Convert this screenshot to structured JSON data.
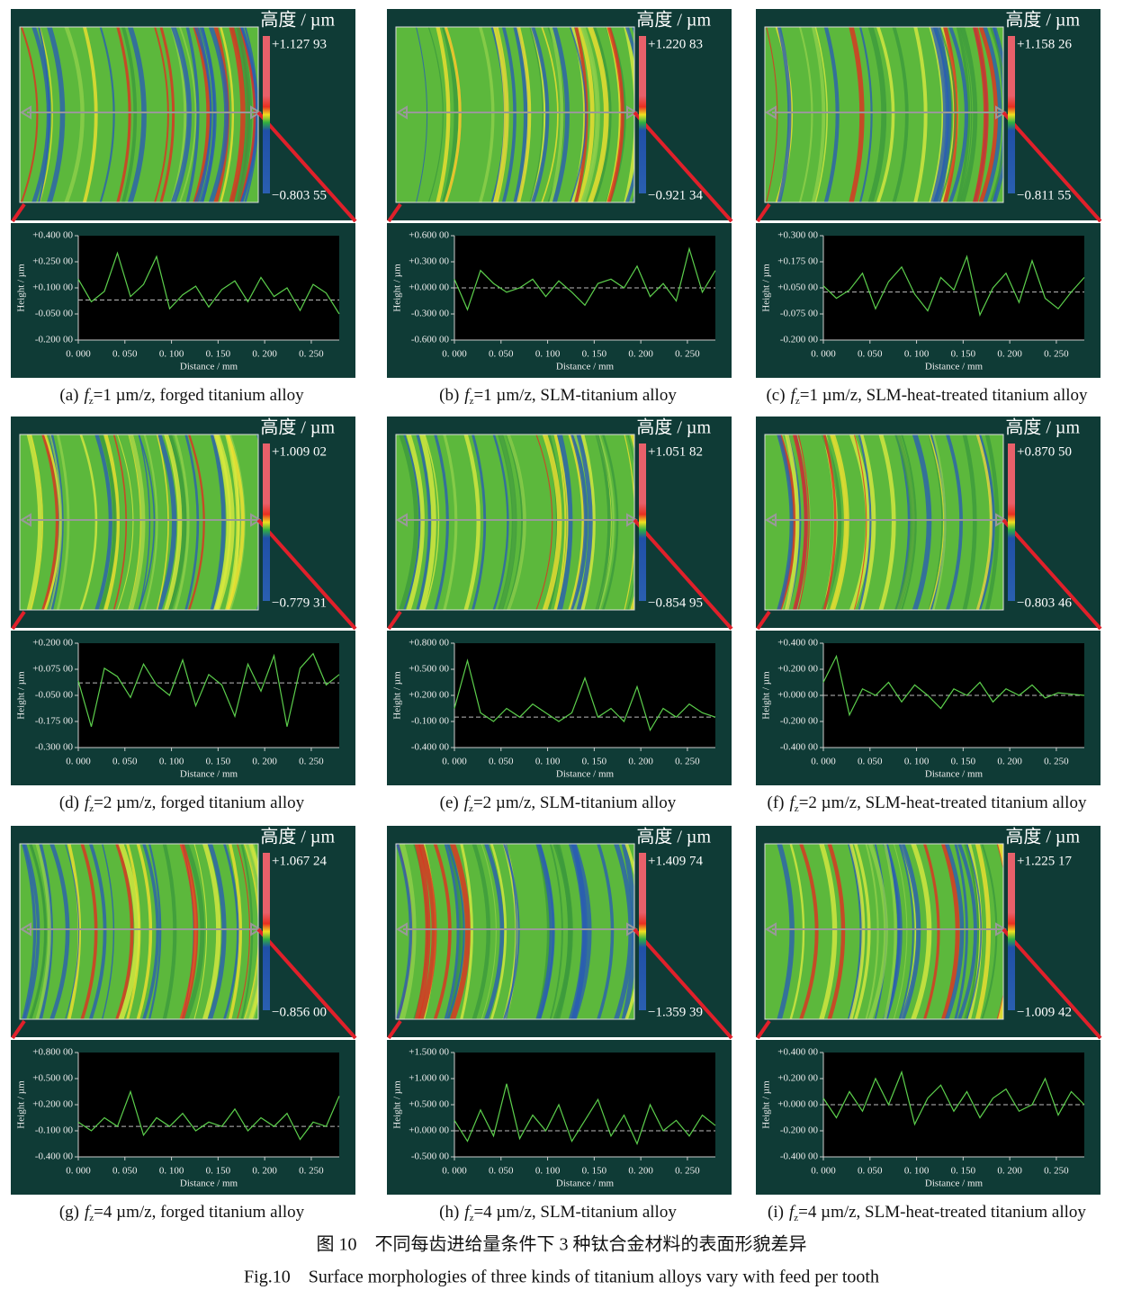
{
  "figure_title_zh": "图 10　不同每齿进给量条件下 3 种钛合金材料的表面形貌差异",
  "figure_title_en": "Fig.10　Surface morphologies of three kinds of titanium alloys vary with feed per tooth",
  "chart_data": [
    {
      "type": "line",
      "caption": {
        "label": "(a)",
        "var": "f",
        "sub": "z",
        "text": "=1 µm/z, forged titanium alloy"
      },
      "colorbar": {
        "title": "高度 / µm",
        "max": {
          "value": 1.12793,
          "label": "+1.127 93"
        },
        "min": {
          "value": -0.80355,
          "label": "−0.803 55"
        }
      },
      "xlabel": "Distance / mm",
      "ylabel": "Height / µm",
      "color": "#5ccf4c",
      "x": [
        0,
        0.014,
        0.028,
        0.042,
        0.056,
        0.07,
        0.084,
        0.098,
        0.112,
        0.126,
        0.14,
        0.154,
        0.168,
        0.182,
        0.196,
        0.21,
        0.224,
        0.238,
        0.252,
        0.266,
        0.28
      ],
      "values": [
        0.15,
        0.02,
        0.08,
        0.3,
        0.05,
        0.12,
        0.28,
        -0.02,
        0.06,
        0.11,
        -0.01,
        0.09,
        0.14,
        0.02,
        0.16,
        0.05,
        0.1,
        -0.03,
        0.12,
        0.07,
        -0.05
      ],
      "reference_line": 0.03,
      "xlim": [
        0,
        0.28
      ],
      "ylim": [
        -0.2,
        0.4
      ],
      "xticks": [
        {
          "value": 0,
          "label": "0. 000"
        },
        {
          "value": 0.05,
          "label": "0. 050"
        },
        {
          "value": 0.1,
          "label": "0. 100"
        },
        {
          "value": 0.15,
          "label": "0. 150"
        },
        {
          "value": 0.2,
          "label": "0. 200"
        },
        {
          "value": 0.25,
          "label": "0. 250"
        }
      ],
      "yticks": [
        {
          "value": -0.2,
          "label": "-0.200 00"
        },
        {
          "value": -0.05,
          "label": "-0.050 00"
        },
        {
          "value": 0.1,
          "label": "+0.100 00"
        },
        {
          "value": 0.25,
          "label": "+0.250 00"
        },
        {
          "value": 0.4,
          "label": "+0.400 00"
        }
      ]
    },
    {
      "type": "line",
      "caption": {
        "label": "(b)",
        "var": "f",
        "sub": "z",
        "text": "=1 µm/z, SLM-titanium alloy"
      },
      "colorbar": {
        "title": "高度 / µm",
        "max": {
          "value": 1.22083,
          "label": "+1.220 83"
        },
        "min": {
          "value": -0.92134,
          "label": "−0.921 34"
        }
      },
      "xlabel": "Distance / mm",
      "ylabel": "Height / µm",
      "color": "#5ccf4c",
      "x": [
        0,
        0.014,
        0.028,
        0.042,
        0.056,
        0.07,
        0.084,
        0.098,
        0.112,
        0.126,
        0.14,
        0.154,
        0.168,
        0.182,
        0.196,
        0.21,
        0.224,
        0.238,
        0.252,
        0.266,
        0.28
      ],
      "values": [
        0.1,
        -0.25,
        0.2,
        0.05,
        -0.05,
        0,
        0.1,
        -0.1,
        0.08,
        -0.05,
        -0.2,
        0.05,
        0.1,
        0,
        0.25,
        -0.1,
        0.05,
        -0.15,
        0.45,
        -0.05,
        0.2
      ],
      "reference_line": 0,
      "xlim": [
        0,
        0.28
      ],
      "ylim": [
        -0.6,
        0.6
      ],
      "xticks": [
        {
          "value": 0,
          "label": "0. 000"
        },
        {
          "value": 0.05,
          "label": "0. 050"
        },
        {
          "value": 0.1,
          "label": "0. 100"
        },
        {
          "value": 0.15,
          "label": "0. 150"
        },
        {
          "value": 0.2,
          "label": "0. 200"
        },
        {
          "value": 0.25,
          "label": "0. 250"
        }
      ],
      "yticks": [
        {
          "value": -0.6,
          "label": "-0.600 00"
        },
        {
          "value": -0.3,
          "label": "-0.300 00"
        },
        {
          "value": 0,
          "label": "+0.000 00"
        },
        {
          "value": 0.3,
          "label": "+0.300 00"
        },
        {
          "value": 0.6,
          "label": "+0.600 00"
        }
      ]
    },
    {
      "type": "line",
      "caption": {
        "label": "(c)",
        "var": "f",
        "sub": "z",
        "text": "=1 µm/z, SLM-heat-treated titanium alloy"
      },
      "colorbar": {
        "title": "高度 / µm",
        "max": {
          "value": 1.15826,
          "label": "+1.158 26"
        },
        "min": {
          "value": -0.81155,
          "label": "−0.811 55"
        }
      },
      "xlabel": "Distance / mm",
      "ylabel": "Height / µm",
      "color": "#5ccf4c",
      "x": [
        0,
        0.014,
        0.028,
        0.042,
        0.056,
        0.07,
        0.084,
        0.098,
        0.112,
        0.126,
        0.14,
        0.154,
        0.168,
        0.182,
        0.196,
        0.21,
        0.224,
        0.238,
        0.252,
        0.266,
        0.28
      ],
      "values": [
        0.06,
        0,
        0.04,
        0.12,
        -0.05,
        0.08,
        0.15,
        0.02,
        -0.06,
        0.1,
        0.04,
        0.2,
        -0.08,
        0.05,
        0.12,
        -0.02,
        0.18,
        0,
        -0.05,
        0.03,
        0.1
      ],
      "reference_line": 0.03,
      "xlim": [
        0,
        0.28
      ],
      "ylim": [
        -0.2,
        0.3
      ],
      "xticks": [
        {
          "value": 0,
          "label": "0. 000"
        },
        {
          "value": 0.05,
          "label": "0. 050"
        },
        {
          "value": 0.1,
          "label": "0. 100"
        },
        {
          "value": 0.15,
          "label": "0. 150"
        },
        {
          "value": 0.2,
          "label": "0. 200"
        },
        {
          "value": 0.25,
          "label": "0. 250"
        }
      ],
      "yticks": [
        {
          "value": -0.2,
          "label": "-0.200 00"
        },
        {
          "value": -0.075,
          "label": "-0.075 00"
        },
        {
          "value": 0.05,
          "label": "+0.050 00"
        },
        {
          "value": 0.175,
          "label": "+0.175 00"
        },
        {
          "value": 0.3,
          "label": "+0.300 00"
        }
      ]
    },
    {
      "type": "line",
      "caption": {
        "label": "(d)",
        "var": "f",
        "sub": "z",
        "text": "=2 µm/z, forged titanium alloy"
      },
      "colorbar": {
        "title": "高度 / µm",
        "max": {
          "value": 1.00902,
          "label": "+1.009 02"
        },
        "min": {
          "value": -0.77931,
          "label": "−0.779 31"
        }
      },
      "xlabel": "Distance / mm",
      "ylabel": "Height / µm",
      "color": "#5ccf4c",
      "x": [
        0,
        0.014,
        0.028,
        0.042,
        0.056,
        0.07,
        0.084,
        0.098,
        0.112,
        0.126,
        0.14,
        0.154,
        0.168,
        0.182,
        0.196,
        0.21,
        0.224,
        0.238,
        0.252,
        0.266,
        0.28
      ],
      "values": [
        0.02,
        -0.2,
        0.08,
        0.04,
        -0.06,
        0.1,
        0,
        -0.05,
        0.12,
        -0.1,
        0.05,
        0,
        -0.15,
        0.1,
        -0.03,
        0.14,
        -0.2,
        0.08,
        0.15,
        0,
        0.05
      ],
      "reference_line": 0.01,
      "xlim": [
        0,
        0.28
      ],
      "ylim": [
        -0.3,
        0.2
      ],
      "xticks": [
        {
          "value": 0,
          "label": "0. 000"
        },
        {
          "value": 0.05,
          "label": "0. 050"
        },
        {
          "value": 0.1,
          "label": "0. 100"
        },
        {
          "value": 0.15,
          "label": "0. 150"
        },
        {
          "value": 0.2,
          "label": "0. 200"
        },
        {
          "value": 0.25,
          "label": "0. 250"
        }
      ],
      "yticks": [
        {
          "value": -0.3,
          "label": "-0.300 00"
        },
        {
          "value": -0.175,
          "label": "-0.175 00"
        },
        {
          "value": -0.05,
          "label": "-0.050 00"
        },
        {
          "value": 0.075,
          "label": "+0.075 00"
        },
        {
          "value": 0.2,
          "label": "+0.200 00"
        }
      ]
    },
    {
      "type": "line",
      "caption": {
        "label": "(e)",
        "var": "f",
        "sub": "z",
        "text": "=2 µm/z, SLM-titanium alloy"
      },
      "colorbar": {
        "title": "高度 / µm",
        "max": {
          "value": 1.05182,
          "label": "+1.051 82"
        },
        "min": {
          "value": -0.85495,
          "label": "−0.854 95"
        }
      },
      "xlabel": "Distance / mm",
      "ylabel": "Height / µm",
      "color": "#5ccf4c",
      "x": [
        0,
        0.014,
        0.028,
        0.042,
        0.056,
        0.07,
        0.084,
        0.098,
        0.112,
        0.126,
        0.14,
        0.154,
        0.168,
        0.182,
        0.196,
        0.21,
        0.224,
        0.238,
        0.252,
        0.266,
        0.28
      ],
      "values": [
        0.05,
        0.6,
        0,
        -0.1,
        0.05,
        -0.05,
        0.1,
        0,
        -0.1,
        0,
        0.4,
        -0.05,
        0.05,
        -0.1,
        0.3,
        -0.2,
        0.05,
        -0.05,
        0.1,
        0,
        -0.05
      ],
      "reference_line": -0.05,
      "xlim": [
        0,
        0.28
      ],
      "ylim": [
        -0.4,
        0.8
      ],
      "xticks": [
        {
          "value": 0,
          "label": "0. 000"
        },
        {
          "value": 0.05,
          "label": "0. 050"
        },
        {
          "value": 0.1,
          "label": "0. 100"
        },
        {
          "value": 0.15,
          "label": "0. 150"
        },
        {
          "value": 0.2,
          "label": "0. 200"
        },
        {
          "value": 0.25,
          "label": "0. 250"
        }
      ],
      "yticks": [
        {
          "value": -0.4,
          "label": "-0.400 00"
        },
        {
          "value": -0.1,
          "label": "-0.100 00"
        },
        {
          "value": 0.2,
          "label": "+0.200 00"
        },
        {
          "value": 0.5,
          "label": "+0.500 00"
        },
        {
          "value": 0.8,
          "label": "+0.800 00"
        }
      ]
    },
    {
      "type": "line",
      "caption": {
        "label": "(f)",
        "var": "f",
        "sub": "z",
        "text": "=2 µm/z, SLM-heat-treated titanium alloy"
      },
      "colorbar": {
        "title": "高度 / µm",
        "max": {
          "value": 0.8705,
          "label": "+0.870 50"
        },
        "min": {
          "value": -0.80346,
          "label": "−0.803 46"
        }
      },
      "xlabel": "Distance / mm",
      "ylabel": "Height / µm",
      "color": "#5ccf4c",
      "x": [
        0,
        0.014,
        0.028,
        0.042,
        0.056,
        0.07,
        0.084,
        0.098,
        0.112,
        0.126,
        0.14,
        0.154,
        0.168,
        0.182,
        0.196,
        0.21,
        0.224,
        0.238,
        0.252,
        0.266,
        0.28
      ],
      "values": [
        0.1,
        0.3,
        -0.15,
        0.05,
        0,
        0.1,
        -0.05,
        0.08,
        0,
        -0.1,
        0.05,
        0,
        0.1,
        -0.05,
        0.05,
        0,
        0.08,
        -0.02,
        0.02,
        0.01,
        0
      ],
      "reference_line": 0,
      "xlim": [
        0,
        0.28
      ],
      "ylim": [
        -0.4,
        0.4
      ],
      "xticks": [
        {
          "value": 0,
          "label": "0. 000"
        },
        {
          "value": 0.05,
          "label": "0. 050"
        },
        {
          "value": 0.1,
          "label": "0. 100"
        },
        {
          "value": 0.15,
          "label": "0. 150"
        },
        {
          "value": 0.2,
          "label": "0. 200"
        },
        {
          "value": 0.25,
          "label": "0. 250"
        }
      ],
      "yticks": [
        {
          "value": -0.4,
          "label": "-0.400 00"
        },
        {
          "value": -0.2,
          "label": "-0.200 00"
        },
        {
          "value": 0,
          "label": "+0.000 00"
        },
        {
          "value": 0.2,
          "label": "+0.200 00"
        },
        {
          "value": 0.4,
          "label": "+0.400 00"
        }
      ]
    },
    {
      "type": "line",
      "caption": {
        "label": "(g)",
        "var": "f",
        "sub": "z",
        "text": "=4 µm/z, forged titanium alloy"
      },
      "colorbar": {
        "title": "高度 / µm",
        "max": {
          "value": 1.06724,
          "label": "+1.067 24"
        },
        "min": {
          "value": -0.856,
          "label": "−0.856 00"
        }
      },
      "xlabel": "Distance / mm",
      "ylabel": "Height / µm",
      "color": "#5ccf4c",
      "x": [
        0,
        0.014,
        0.028,
        0.042,
        0.056,
        0.07,
        0.084,
        0.098,
        0.112,
        0.126,
        0.14,
        0.154,
        0.168,
        0.182,
        0.196,
        0.21,
        0.224,
        0.238,
        0.252,
        0.266,
        0.28
      ],
      "values": [
        0,
        -0.1,
        0.05,
        -0.05,
        0.35,
        -0.15,
        0.05,
        -0.05,
        0.1,
        -0.1,
        0,
        -0.05,
        0.15,
        -0.1,
        0.05,
        -0.05,
        0.1,
        -0.2,
        0,
        -0.05,
        0.3
      ],
      "reference_line": -0.05,
      "xlim": [
        0,
        0.28
      ],
      "ylim": [
        -0.4,
        0.8
      ],
      "xticks": [
        {
          "value": 0,
          "label": "0. 000"
        },
        {
          "value": 0.05,
          "label": "0. 050"
        },
        {
          "value": 0.1,
          "label": "0. 100"
        },
        {
          "value": 0.15,
          "label": "0. 150"
        },
        {
          "value": 0.2,
          "label": "0. 200"
        },
        {
          "value": 0.25,
          "label": "0. 250"
        }
      ],
      "yticks": [
        {
          "value": -0.4,
          "label": "-0.400 00"
        },
        {
          "value": -0.1,
          "label": "-0.100 00"
        },
        {
          "value": 0.2,
          "label": "+0.200 00"
        },
        {
          "value": 0.5,
          "label": "+0.500 00"
        },
        {
          "value": 0.8,
          "label": "+0.800 00"
        }
      ]
    },
    {
      "type": "line",
      "caption": {
        "label": "(h)",
        "var": "f",
        "sub": "z",
        "text": "=4 µm/z, SLM-titanium alloy"
      },
      "colorbar": {
        "title": "高度 / µm",
        "max": {
          "value": 1.40974,
          "label": "+1.409 74"
        },
        "min": {
          "value": -1.35939,
          "label": "−1.359 39"
        }
      },
      "xlabel": "Distance / mm",
      "ylabel": "Height / µm",
      "color": "#5ccf4c",
      "x": [
        0,
        0.014,
        0.028,
        0.042,
        0.056,
        0.07,
        0.084,
        0.098,
        0.112,
        0.126,
        0.14,
        0.154,
        0.168,
        0.182,
        0.196,
        0.21,
        0.224,
        0.238,
        0.252,
        0.266,
        0.28
      ],
      "values": [
        0.2,
        -0.2,
        0.4,
        -0.1,
        0.9,
        -0.15,
        0.3,
        0,
        0.5,
        -0.2,
        0.2,
        0.6,
        -0.1,
        0.3,
        -0.25,
        0.5,
        0,
        0.2,
        -0.1,
        0.3,
        0.1
      ],
      "reference_line": 0,
      "xlim": [
        0,
        0.28
      ],
      "ylim": [
        -0.5,
        1.5
      ],
      "xticks": [
        {
          "value": 0,
          "label": "0. 000"
        },
        {
          "value": 0.05,
          "label": "0. 050"
        },
        {
          "value": 0.1,
          "label": "0. 100"
        },
        {
          "value": 0.15,
          "label": "0. 150"
        },
        {
          "value": 0.2,
          "label": "0. 200"
        },
        {
          "value": 0.25,
          "label": "0. 250"
        }
      ],
      "yticks": [
        {
          "value": -0.5,
          "label": "-0.500 00"
        },
        {
          "value": 0,
          "label": "+0.000 00"
        },
        {
          "value": 0.5,
          "label": "+0.500 00"
        },
        {
          "value": 1,
          "label": "+1.000 00"
        },
        {
          "value": 1.5,
          "label": "+1.500 00"
        }
      ]
    },
    {
      "type": "line",
      "caption": {
        "label": "(i)",
        "var": "f",
        "sub": "z",
        "text": "=4 µm/z, SLM-heat-treated titanium alloy"
      },
      "colorbar": {
        "title": "高度 / µm",
        "max": {
          "value": 1.22517,
          "label": "+1.225 17"
        },
        "min": {
          "value": -1.00942,
          "label": "−1.009 42"
        }
      },
      "xlabel": "Distance / mm",
      "ylabel": "Height / µm",
      "color": "#5ccf4c",
      "x": [
        0,
        0.014,
        0.028,
        0.042,
        0.056,
        0.07,
        0.084,
        0.098,
        0.112,
        0.126,
        0.14,
        0.154,
        0.168,
        0.182,
        0.196,
        0.21,
        0.224,
        0.238,
        0.252,
        0.266,
        0.28
      ],
      "values": [
        0.05,
        -0.1,
        0.1,
        -0.05,
        0.2,
        0,
        0.25,
        -0.15,
        0.05,
        0.15,
        -0.05,
        0.1,
        -0.1,
        0.05,
        0.12,
        -0.05,
        0,
        0.2,
        -0.08,
        0.1,
        0
      ],
      "reference_line": 0,
      "xlim": [
        0,
        0.28
      ],
      "ylim": [
        -0.4,
        0.4
      ],
      "xticks": [
        {
          "value": 0,
          "label": "0. 000"
        },
        {
          "value": 0.05,
          "label": "0. 050"
        },
        {
          "value": 0.1,
          "label": "0. 100"
        },
        {
          "value": 0.15,
          "label": "0. 150"
        },
        {
          "value": 0.2,
          "label": "0. 200"
        },
        {
          "value": 0.25,
          "label": "0. 250"
        }
      ],
      "yticks": [
        {
          "value": -0.4,
          "label": "-0.400 00"
        },
        {
          "value": -0.2,
          "label": "-0.200 00"
        },
        {
          "value": 0,
          "label": "+0.000 00"
        },
        {
          "value": 0.2,
          "label": "+0.200 00"
        },
        {
          "value": 0.4,
          "label": "+0.400 00"
        }
      ]
    }
  ]
}
